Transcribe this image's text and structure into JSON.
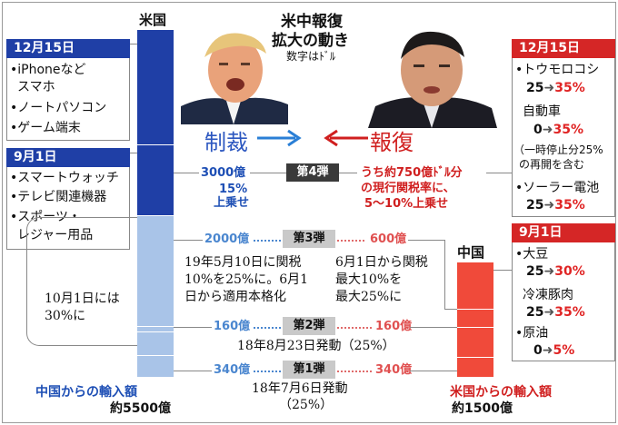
{
  "title": {
    "line1": "米中報復",
    "line2": "拡大の動き",
    "note": "数字はﾄﾞﾙ"
  },
  "labels": {
    "sanction": "制裁",
    "retaliation": "報復"
  },
  "us": {
    "country": "米国",
    "dec15": {
      "header": "12月15日",
      "items": [
        "•iPhoneなど",
        "スマホ",
        "•ノートパソコン",
        "•ゲーム端末"
      ]
    },
    "sep1": {
      "header": "9月1日",
      "items": [
        "•スマートウォッチ",
        "•テレビ関連機器",
        "•スポーツ・",
        "レジャー用品"
      ]
    },
    "oct1_note": [
      "10月1日には",
      "30%に"
    ],
    "import_label": "中国からの輸入額",
    "import_total": "約5500億",
    "color": "#1e4fb5"
  },
  "cn": {
    "country": "中国",
    "import_label": "米国からの輸入額",
    "import_total": "約1500億",
    "color": "#e02424",
    "dec15": {
      "header": "12月15日",
      "items": [
        {
          "name": "•トウモロコシ",
          "from": "25",
          "to": "35%"
        },
        {
          "name": "自動車",
          "from": "0",
          "to": "35%",
          "note": [
            "（一時停止分25%",
            "の再開を含む"
          ]
        },
        {
          "name": "•ソーラー電池",
          "from": "25",
          "to": "35%"
        }
      ]
    },
    "sep1": {
      "header": "9月1日",
      "items": [
        {
          "name": "•大豆",
          "from": "25",
          "to": "30%"
        },
        {
          "name": "冷凍豚肉",
          "from": "25",
          "to": "35%"
        },
        {
          "name": "•原油",
          "from": "0",
          "to": "5%"
        }
      ]
    }
  },
  "rounds": {
    "r4": {
      "label": "第4弾",
      "us_amount": "3000億",
      "us_rate": [
        "15%",
        "上乗せ"
      ],
      "cn_text": [
        "うち約750億ﾄﾞﾙ分",
        "の現行関税率に、",
        "5〜10%上乗せ"
      ]
    },
    "r3": {
      "label": "第3弾",
      "us_amount": "2000億",
      "cn_amount": "600億",
      "us_note": [
        "19年5月10日に関税",
        "10%を25%に。6月1",
        "日から適用本格化"
      ],
      "cn_note": [
        "6月1日から関税",
        "最大10%を",
        "最大25%に"
      ]
    },
    "r2": {
      "label": "第2弾",
      "us_amount": "160億",
      "cn_amount": "160億",
      "note": "18年8月23日発動（25%）"
    },
    "r1": {
      "label": "第1弾",
      "us_amount": "340億",
      "cn_amount": "340億",
      "note": [
        "18年7月6日発動",
        "（25%）"
      ]
    }
  }
}
